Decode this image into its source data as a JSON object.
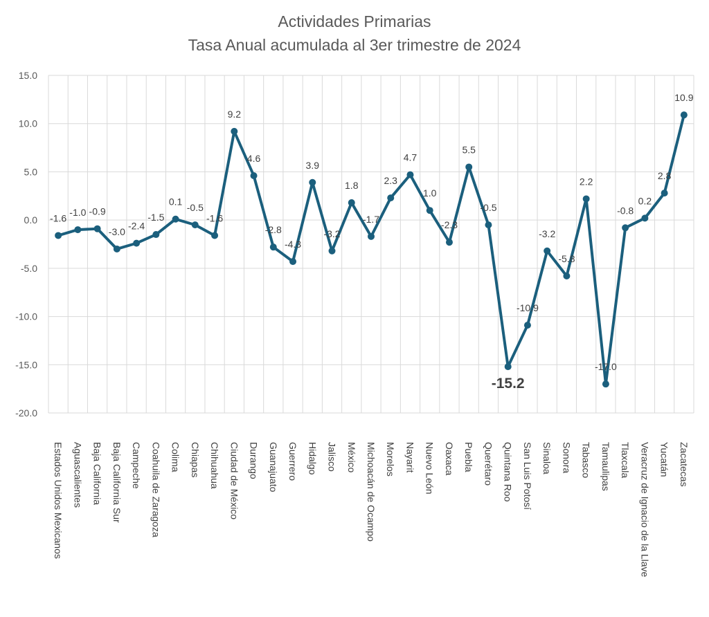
{
  "chart_data": {
    "type": "line",
    "title": "Actividades Primarias",
    "subtitle": "Tasa Anual acumulada al 3er trimestre de 2024",
    "xlabel": "",
    "ylabel": "",
    "ylim": [
      -20,
      15
    ],
    "yticks": [
      "15.0",
      "10.0",
      "5.0",
      "0.0",
      "-5.0",
      "-10.0",
      "-15.0",
      "-20.0"
    ],
    "grid": true,
    "legend": "none",
    "color": "#1b5f7d",
    "categories": [
      "Estados Unidos Mexicanos",
      "Aguascalientes",
      "Baja California",
      "Baja California Sur",
      "Campeche",
      "Coahuila de Zaragoza",
      "Colima",
      "Chiapas",
      "Chihuahua",
      "Ciudad de México",
      "Durango",
      "Guanajuato",
      "Guerrero",
      "Hidalgo",
      "Jalisco",
      "México",
      "Michoacán de Ocampo",
      "Morelos",
      "Nayarit",
      "Nuevo León",
      "Oaxaca",
      "Puebla",
      "Querétaro",
      "Quintana Roo",
      "San Luis Potosí",
      "Sinaloa",
      "Sonora",
      "Tabasco",
      "Tamaulipas",
      "Tlaxcala",
      "Veracruz de Ignacio de la Llave",
      "Yucatán",
      "Zacatecas"
    ],
    "series": [
      {
        "values": [
          -1.6,
          -1.0,
          -0.9,
          -3.0,
          -2.4,
          -1.5,
          0.1,
          -0.5,
          -1.6,
          9.2,
          4.6,
          -2.8,
          -4.3,
          3.9,
          -3.2,
          1.8,
          -1.7,
          2.3,
          4.7,
          1.0,
          -2.3,
          5.5,
          -0.5,
          -15.2,
          -10.9,
          -3.2,
          -5.8,
          2.2,
          -17.0,
          -0.8,
          0.2,
          2.8,
          10.9
        ],
        "labels": [
          "-1.6",
          "-1.0",
          "-0.9",
          "-3.0",
          "-2.4",
          "-1.5",
          "0.1",
          "-0.5",
          "-1.6",
          "9.2",
          "4.6",
          "-2.8",
          "-4.3",
          "3.9",
          "-3.2",
          "1.8",
          "-1.7",
          "2.3",
          "4.7",
          "1.0",
          "-2.3",
          "5.5",
          "-0.5",
          "-15.2",
          "-10.9",
          "-3.2",
          "-5.8",
          "2.2",
          "-17.0",
          "-0.8",
          "0.2",
          "2.8",
          "10.9"
        ]
      }
    ],
    "highlight_index": 23
  }
}
